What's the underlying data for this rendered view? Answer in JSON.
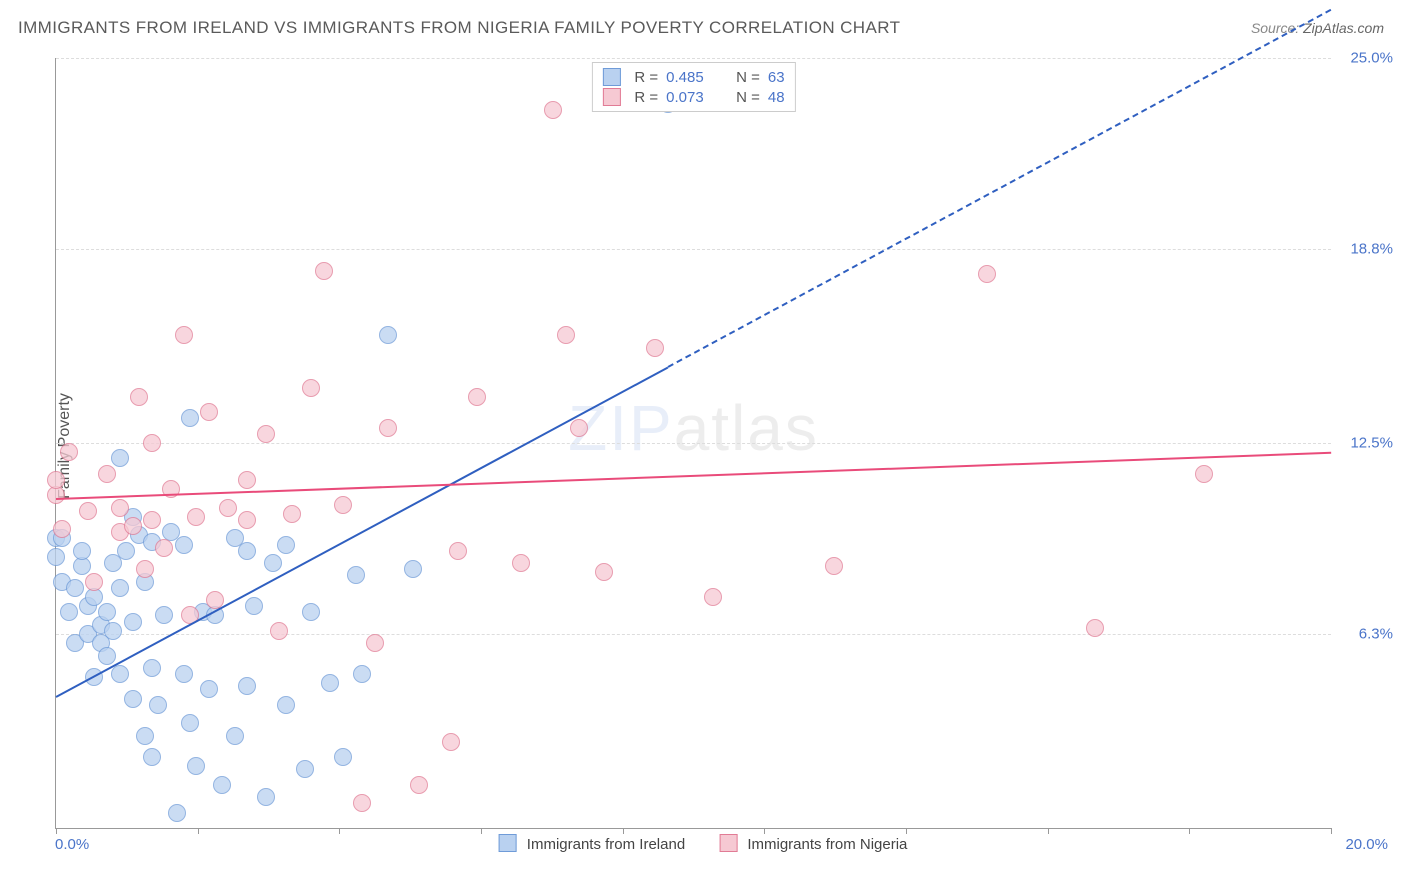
{
  "title": "IMMIGRANTS FROM IRELAND VS IMMIGRANTS FROM NIGERIA FAMILY POVERTY CORRELATION CHART",
  "source_label": "Source:",
  "source_value": "ZipAtlas.com",
  "ylabel": "Family Poverty",
  "watermark_a": "ZIP",
  "watermark_b": "atlas",
  "chart": {
    "type": "scatter",
    "xlim": [
      0,
      20
    ],
    "ylim": [
      0,
      25
    ],
    "x_ticks_labels": {
      "min": "0.0%",
      "max": "20.0%"
    },
    "y_gridlines": [
      6.3,
      12.5,
      18.8,
      25.0
    ],
    "y_grid_labels": [
      "6.3%",
      "12.5%",
      "18.8%",
      "25.0%"
    ],
    "background_color": "#ffffff",
    "grid_color": "#dddddd",
    "axis_color": "#999999",
    "label_color": "#4a74c9",
    "xaxis_ticks": [
      0,
      2.22,
      4.44,
      6.67,
      8.89,
      11.11,
      13.33,
      15.56,
      17.78,
      20
    ],
    "marker_radius": 8,
    "series": [
      {
        "name": "Immigrants from Ireland",
        "fill": "#b9d1f0",
        "stroke": "#6f9bd8",
        "trend_color": "#2f5fc0",
        "R": "0.485",
        "N": "63",
        "trend": {
          "x0": 0,
          "y0": 4.3,
          "x1": 9.6,
          "y1": 15.0,
          "x1_ext": 20.0,
          "y1_ext": 26.6
        },
        "points": [
          [
            0.0,
            8.8
          ],
          [
            0.0,
            9.4
          ],
          [
            0.1,
            8.0
          ],
          [
            0.1,
            9.4
          ],
          [
            0.2,
            7.0
          ],
          [
            0.3,
            6.0
          ],
          [
            0.3,
            7.8
          ],
          [
            0.4,
            8.5
          ],
          [
            0.4,
            9.0
          ],
          [
            0.5,
            6.3
          ],
          [
            0.5,
            7.2
          ],
          [
            0.6,
            4.9
          ],
          [
            0.6,
            7.5
          ],
          [
            0.7,
            6.0
          ],
          [
            0.7,
            6.6
          ],
          [
            0.8,
            5.6
          ],
          [
            0.8,
            7.0
          ],
          [
            0.9,
            6.4
          ],
          [
            0.9,
            8.6
          ],
          [
            1.0,
            5.0
          ],
          [
            1.0,
            7.8
          ],
          [
            1.0,
            12.0
          ],
          [
            1.1,
            9.0
          ],
          [
            1.2,
            4.2
          ],
          [
            1.2,
            6.7
          ],
          [
            1.2,
            10.1
          ],
          [
            1.3,
            9.5
          ],
          [
            1.4,
            3.0
          ],
          [
            1.4,
            8.0
          ],
          [
            1.5,
            2.3
          ],
          [
            1.5,
            5.2
          ],
          [
            1.5,
            9.3
          ],
          [
            1.6,
            4.0
          ],
          [
            1.7,
            6.9
          ],
          [
            1.8,
            9.6
          ],
          [
            1.9,
            0.5
          ],
          [
            2.0,
            5.0
          ],
          [
            2.0,
            9.2
          ],
          [
            2.1,
            3.4
          ],
          [
            2.1,
            13.3
          ],
          [
            2.2,
            2.0
          ],
          [
            2.3,
            7.0
          ],
          [
            2.4,
            4.5
          ],
          [
            2.5,
            6.9
          ],
          [
            2.6,
            1.4
          ],
          [
            2.8,
            3.0
          ],
          [
            2.8,
            9.4
          ],
          [
            3.0,
            4.6
          ],
          [
            3.0,
            9.0
          ],
          [
            3.1,
            7.2
          ],
          [
            3.3,
            1.0
          ],
          [
            3.4,
            8.6
          ],
          [
            3.6,
            4.0
          ],
          [
            3.6,
            9.2
          ],
          [
            3.9,
            1.9
          ],
          [
            4.0,
            7.0
          ],
          [
            4.3,
            4.7
          ],
          [
            4.5,
            2.3
          ],
          [
            4.7,
            8.2
          ],
          [
            4.8,
            5.0
          ],
          [
            5.2,
            16.0
          ],
          [
            5.6,
            8.4
          ],
          [
            9.6,
            23.5
          ]
        ]
      },
      {
        "name": "Immigrants from Nigeria",
        "fill": "#f6c9d3",
        "stroke": "#e17b95",
        "trend_color": "#e94b7a",
        "R": "0.073",
        "N": "48",
        "trend": {
          "x0": 0,
          "y0": 10.7,
          "x1": 20.0,
          "y1": 12.2
        },
        "points": [
          [
            0.0,
            10.8
          ],
          [
            0.0,
            11.3
          ],
          [
            0.1,
            9.7
          ],
          [
            0.2,
            12.2
          ],
          [
            0.5,
            10.3
          ],
          [
            0.6,
            8.0
          ],
          [
            0.8,
            11.5
          ],
          [
            1.0,
            9.6
          ],
          [
            1.0,
            10.4
          ],
          [
            1.2,
            9.8
          ],
          [
            1.3,
            14.0
          ],
          [
            1.4,
            8.4
          ],
          [
            1.5,
            10.0
          ],
          [
            1.5,
            12.5
          ],
          [
            1.7,
            9.1
          ],
          [
            1.8,
            11.0
          ],
          [
            2.0,
            16.0
          ],
          [
            2.1,
            6.9
          ],
          [
            2.2,
            10.1
          ],
          [
            2.4,
            13.5
          ],
          [
            2.5,
            7.4
          ],
          [
            2.7,
            10.4
          ],
          [
            3.0,
            10.0
          ],
          [
            3.0,
            11.3
          ],
          [
            3.3,
            12.8
          ],
          [
            3.5,
            6.4
          ],
          [
            3.7,
            10.2
          ],
          [
            4.0,
            14.3
          ],
          [
            4.2,
            18.1
          ],
          [
            4.5,
            10.5
          ],
          [
            4.8,
            0.8
          ],
          [
            5.0,
            6.0
          ],
          [
            5.2,
            13.0
          ],
          [
            5.7,
            1.4
          ],
          [
            6.2,
            2.8
          ],
          [
            6.3,
            9.0
          ],
          [
            6.6,
            14.0
          ],
          [
            7.3,
            8.6
          ],
          [
            7.8,
            23.3
          ],
          [
            8.0,
            16.0
          ],
          [
            8.2,
            13.0
          ],
          [
            8.6,
            8.3
          ],
          [
            9.4,
            15.6
          ],
          [
            10.3,
            7.5
          ],
          [
            12.2,
            8.5
          ],
          [
            14.6,
            18.0
          ],
          [
            16.3,
            6.5
          ],
          [
            18.0,
            11.5
          ]
        ]
      }
    ]
  },
  "legend_bottom": {
    "items": [
      {
        "label": "Immigrants from Ireland"
      },
      {
        "label": "Immigrants from Nigeria"
      }
    ]
  }
}
